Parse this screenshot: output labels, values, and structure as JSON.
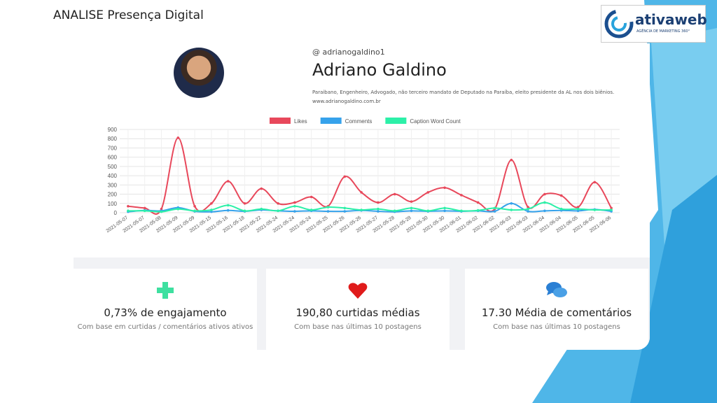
{
  "header": {
    "title": "ANALISE Presença Digital",
    "logo": "ativaweb",
    "logo_tagline": "AGÊNCIA DE MARKETING 360°"
  },
  "profile": {
    "username": "@ adrianogaldino1",
    "name": "Adriano Galdino",
    "bio": "Paraibano, Engenheiro, Advogado, não terceiro mandato de Deputado na Paraíba, eleito presidente da AL nos dois biênios.",
    "website": "www.adrianogaldino.com.br"
  },
  "chart_data": {
    "type": "line",
    "categories": [
      "2021-05-07",
      "2021-05-07",
      "2021-05-08",
      "2021-05-09",
      "2021-05-09",
      "2021-05-15",
      "2021-05-16",
      "2021-05-18",
      "2021-05-22",
      "2021-05-24",
      "2021-05-24",
      "2021-05-24",
      "2021-05-25",
      "2021-05-26",
      "2021-05-26",
      "2021-05-27",
      "2021-05-28",
      "2021-05-28",
      "2021-05-30",
      "2021-05-30",
      "2021-06-01",
      "2021-06-02",
      "2021-06-02",
      "2021-06-03",
      "2021-06-03",
      "2021-06-04",
      "2021-06-04",
      "2021-06-05",
      "2021-06-05",
      "2021-06-06"
    ],
    "series": [
      {
        "name": "Likes",
        "color": "#e8485b",
        "values": [
          70,
          50,
          40,
          810,
          70,
          100,
          340,
          100,
          260,
          100,
          110,
          170,
          70,
          390,
          220,
          110,
          200,
          120,
          220,
          270,
          190,
          110,
          40,
          570,
          60,
          200,
          185,
          60,
          330,
          50
        ]
      },
      {
        "name": "Comments",
        "color": "#36a2eb",
        "values": [
          10,
          25,
          20,
          55,
          15,
          10,
          25,
          15,
          30,
          20,
          15,
          20,
          15,
          15,
          25,
          15,
          10,
          20,
          15,
          20,
          15,
          20,
          15,
          100,
          15,
          20,
          25,
          20,
          35,
          15
        ]
      },
      {
        "name": "Caption Word Count",
        "color": "#2cf0a8",
        "values": [
          20,
          20,
          10,
          40,
          20,
          30,
          80,
          20,
          40,
          20,
          70,
          30,
          60,
          50,
          30,
          40,
          20,
          50,
          20,
          50,
          20,
          25,
          50,
          30,
          40,
          110,
          40,
          40,
          30,
          30
        ]
      }
    ],
    "ylim": [
      0,
      900
    ],
    "yticks": [
      0,
      100,
      200,
      300,
      400,
      500,
      600,
      700,
      800,
      900
    ],
    "grid": true,
    "legend": "top"
  },
  "cards": [
    {
      "title": "0,73% de engajamento",
      "subtitle": "Com base em curtidas / comentários ativos ativos"
    },
    {
      "title": "190,80 curtidas médias",
      "subtitle": "Com base nas últimas 10 postagens"
    },
    {
      "title": "17.30 Média de comentários",
      "subtitle": "Com base nas últimas 10 postagens"
    }
  ]
}
